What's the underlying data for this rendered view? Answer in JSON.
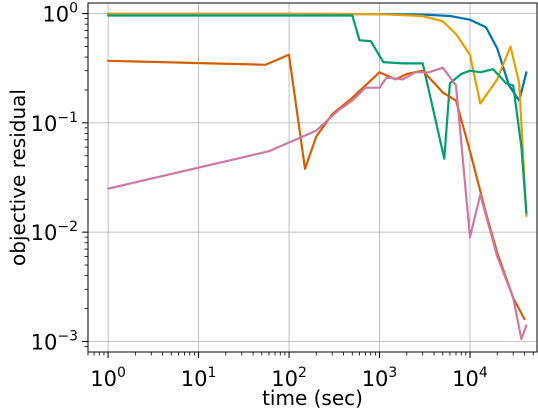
{
  "chart_data": {
    "type": "line",
    "title": "",
    "xlabel": "time (sec)",
    "ylabel": "objective residual",
    "xscale": "log",
    "yscale": "log",
    "xlim": [
      0.6,
      55000
    ],
    "ylim": [
      0.0008,
      1.25
    ],
    "grid": true,
    "legend": "none",
    "x_ticks": [
      {
        "value": 1,
        "base": "10",
        "exp": "0"
      },
      {
        "value": 10,
        "base": "10",
        "exp": "1"
      },
      {
        "value": 100,
        "base": "10",
        "exp": "2"
      },
      {
        "value": 1000,
        "base": "10",
        "exp": "3"
      },
      {
        "value": 10000,
        "base": "10",
        "exp": "4"
      }
    ],
    "y_ticks": [
      {
        "value": 1,
        "base": "10",
        "exp": "0"
      },
      {
        "value": 0.1,
        "base": "10",
        "exp": "−1"
      },
      {
        "value": 0.01,
        "base": "10",
        "exp": "−2"
      },
      {
        "value": 0.001,
        "base": "10",
        "exp": "−3"
      }
    ],
    "series": [
      {
        "color": "#0072b2",
        "x": [
          1,
          100,
          1000,
          3000,
          6000,
          10000,
          15000,
          20000,
          27000,
          35000,
          42000
        ],
        "y": [
          0.995,
          0.995,
          0.99,
          0.98,
          0.95,
          0.88,
          0.75,
          0.48,
          0.22,
          0.16,
          0.29
        ]
      },
      {
        "color": "#e69f00",
        "x": [
          1,
          100,
          1000,
          3000,
          5000,
          7000,
          10000,
          13000,
          20000,
          28000,
          35000,
          42000
        ],
        "y": [
          0.995,
          0.995,
          0.99,
          0.95,
          0.85,
          0.65,
          0.42,
          0.15,
          0.25,
          0.5,
          0.23,
          0.014
        ]
      },
      {
        "color": "#009e73",
        "x": [
          1,
          200,
          500,
          600,
          800,
          1100,
          1800,
          3000,
          5200,
          6000,
          8000,
          10000,
          13000,
          18000,
          21000,
          25000,
          30000,
          37000,
          42000
        ],
        "y": [
          0.96,
          0.96,
          0.96,
          0.57,
          0.56,
          0.36,
          0.35,
          0.35,
          0.047,
          0.23,
          0.28,
          0.3,
          0.29,
          0.31,
          0.27,
          0.23,
          0.22,
          0.06,
          0.015
        ]
      },
      {
        "color": "#d55e00",
        "x": [
          1,
          55,
          100,
          150,
          200,
          300,
          500,
          700,
          1000,
          1500,
          2000,
          3000,
          5000,
          7000,
          10000,
          15000,
          20000,
          30000,
          40000
        ],
        "y": [
          0.37,
          0.34,
          0.42,
          0.038,
          0.075,
          0.12,
          0.17,
          0.22,
          0.29,
          0.25,
          0.28,
          0.3,
          0.19,
          0.16,
          0.055,
          0.015,
          0.0065,
          0.0025,
          0.0016
        ]
      },
      {
        "color": "#cc79a7",
        "x": [
          1,
          60,
          200,
          350,
          500,
          700,
          1000,
          1200,
          1800,
          2500,
          3500,
          5000,
          7000,
          10000,
          13000,
          20000,
          30000,
          37000,
          42000
        ],
        "y": [
          0.025,
          0.055,
          0.085,
          0.13,
          0.16,
          0.21,
          0.21,
          0.26,
          0.25,
          0.29,
          0.29,
          0.32,
          0.22,
          0.009,
          0.022,
          0.006,
          0.0025,
          0.00105,
          0.0014
        ]
      }
    ]
  }
}
